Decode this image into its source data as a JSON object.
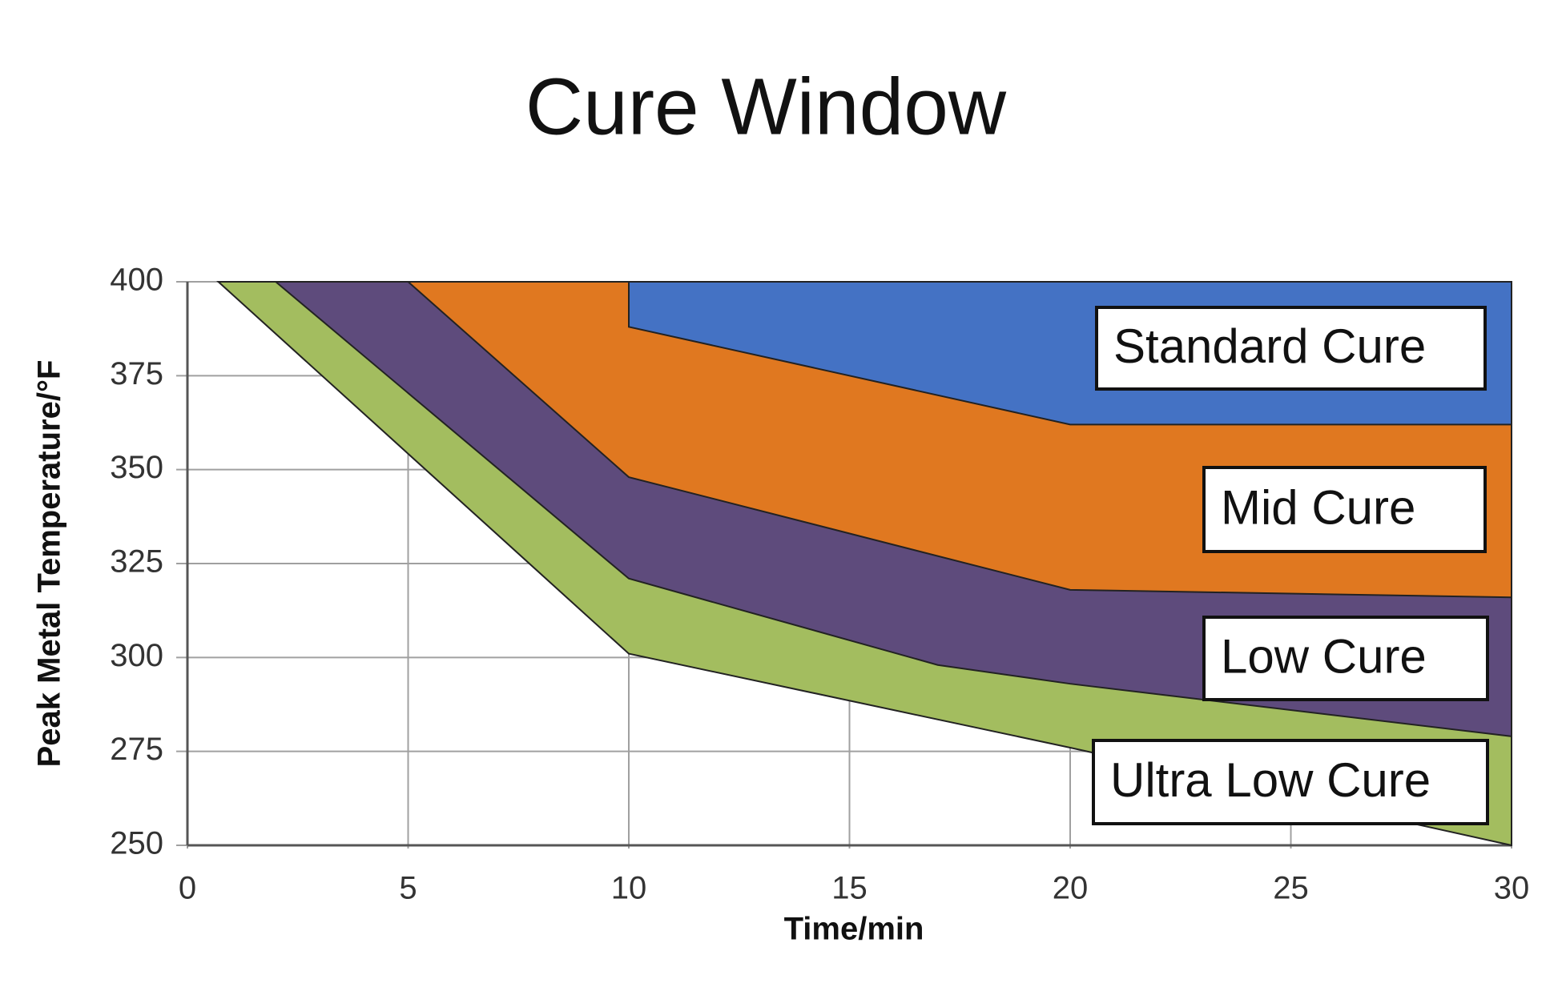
{
  "chart_data": {
    "type": "area",
    "title": "Cure Window",
    "x_label": "Time/min",
    "y_label": "Peak Metal Temperature/°F",
    "xlim": [
      0,
      30
    ],
    "ylim": [
      250,
      400
    ],
    "xticks": [
      0,
      5,
      10,
      15,
      20,
      25,
      30
    ],
    "yticks": [
      250,
      275,
      300,
      325,
      350,
      375,
      400
    ],
    "grid": true,
    "series": [
      {
        "name": "Standard Cure",
        "color": "#4472c4",
        "x": [
          10,
          10,
          20,
          30
        ],
        "values": [
          400,
          388,
          362,
          362
        ]
      },
      {
        "name": "Mid Cure",
        "color": "#e07820",
        "x": [
          5,
          10,
          20,
          30
        ],
        "values": [
          400,
          348,
          318,
          316
        ]
      },
      {
        "name": "Low Cure",
        "color": "#5e4b7c",
        "x": [
          2,
          10,
          17,
          20,
          30
        ],
        "values": [
          400,
          321,
          298,
          293,
          279
        ]
      },
      {
        "name": "Ultra Low Cure",
        "color": "#a3bd5f",
        "x": [
          0.7,
          10,
          20,
          30
        ],
        "values": [
          400,
          301,
          276,
          250
        ]
      }
    ]
  }
}
